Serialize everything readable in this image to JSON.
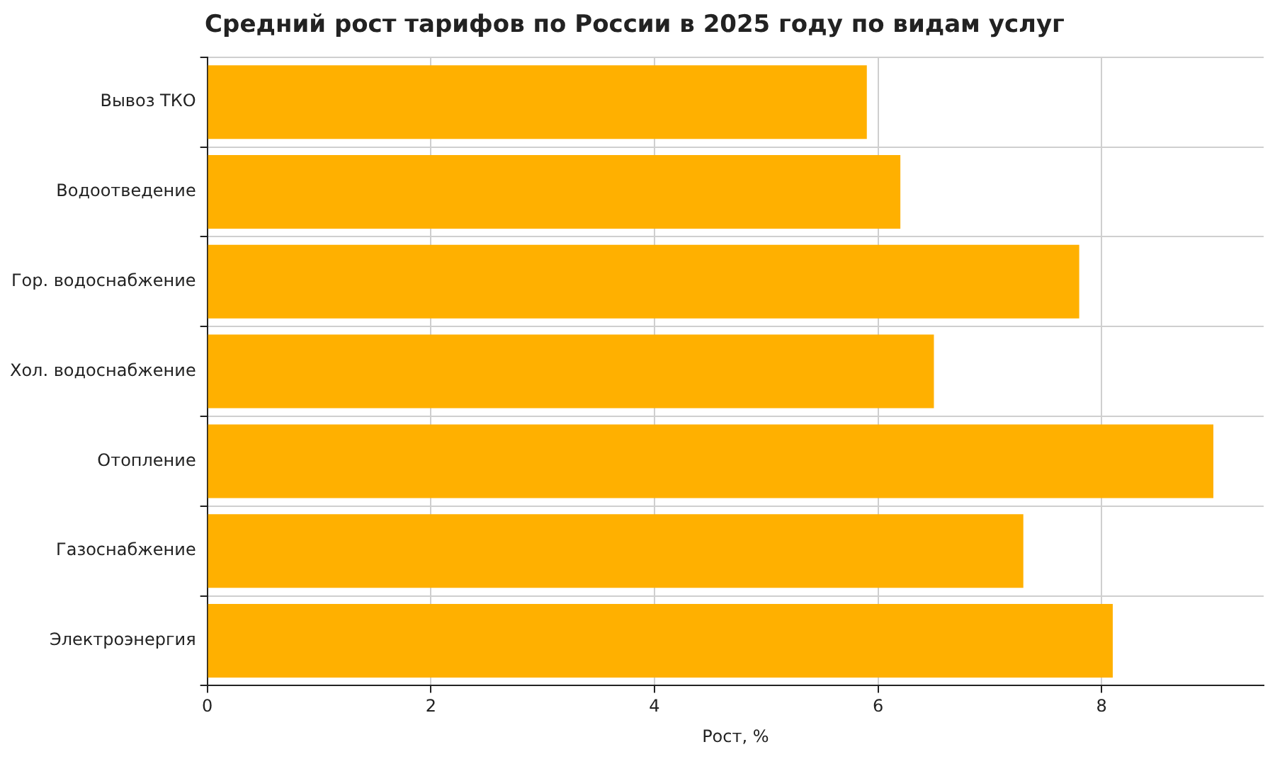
{
  "chart_data": {
    "type": "bar",
    "orientation": "horizontal",
    "title": "Средний рост тарифов по России в 2025 году по видам услуг",
    "xlabel": "Рост, %",
    "categories": [
      "Вывоз ТКО",
      "Водоотведение",
      "Гор. водоснабжение",
      "Хол. водоснабжение",
      "Отопление",
      "Газоснабжение",
      "Электроэнергия"
    ],
    "values": [
      5.9,
      6.2,
      7.8,
      6.5,
      9.0,
      7.3,
      8.1
    ],
    "color": "#ffb000",
    "xlim": [
      0,
      9.45
    ],
    "xticks": [
      0,
      2,
      4,
      6,
      8
    ],
    "grid": true,
    "legend": false
  }
}
